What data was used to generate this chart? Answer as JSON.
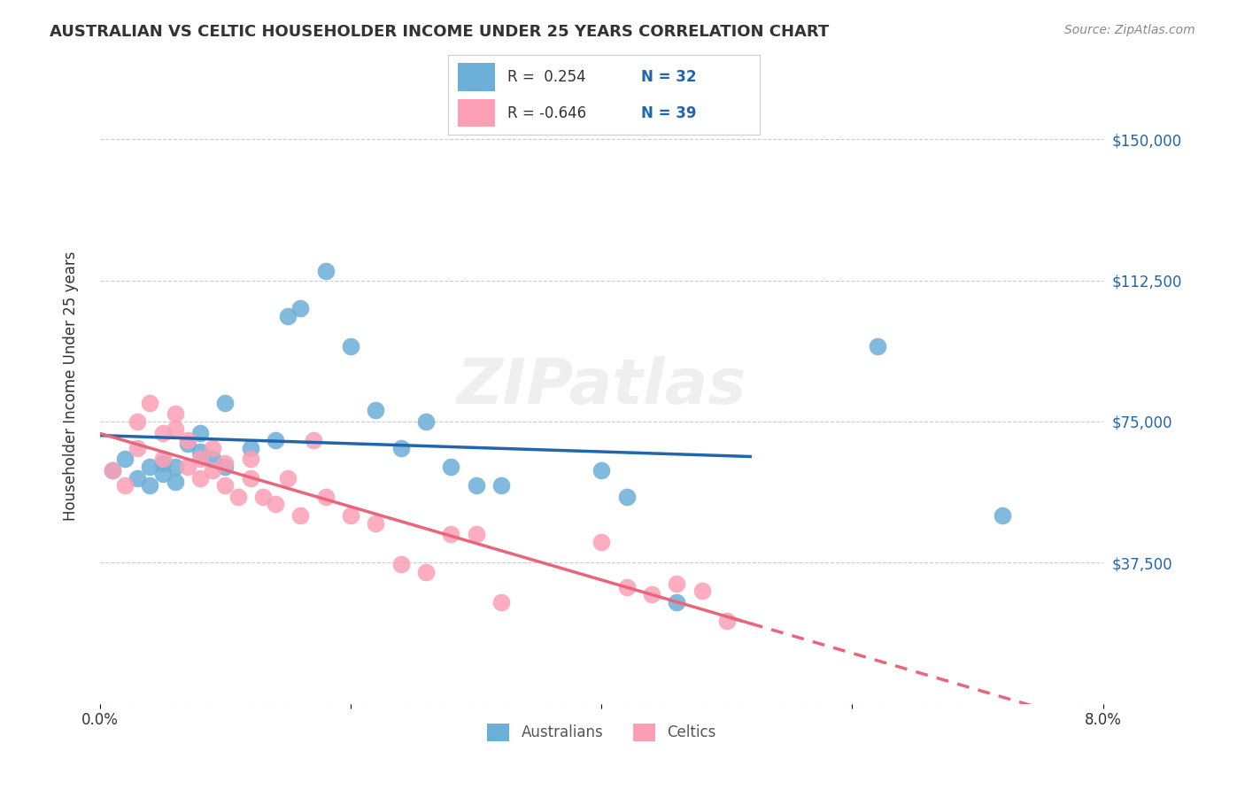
{
  "title": "AUSTRALIAN VS CELTIC HOUSEHOLDER INCOME UNDER 25 YEARS CORRELATION CHART",
  "source": "Source: ZipAtlas.com",
  "xlabel": "",
  "ylabel": "Householder Income Under 25 years",
  "watermark": "ZIPatlas",
  "xlim": [
    0.0,
    0.08
  ],
  "ylim": [
    0,
    168750
  ],
  "yticks": [
    0,
    37500,
    75000,
    112500,
    150000
  ],
  "ytick_labels": [
    "",
    "$37,500",
    "$75,000",
    "$112,500",
    "$150,000"
  ],
  "xticks": [
    0.0,
    0.02,
    0.04,
    0.06,
    0.08
  ],
  "xtick_labels": [
    "0.0%",
    "",
    "",
    "",
    "8.0%"
  ],
  "legend_R_aus": "0.254",
  "legend_N_aus": "32",
  "legend_R_cel": "-0.646",
  "legend_N_cel": "39",
  "legend_label_aus": "Australians",
  "legend_label_cel": "Celtics",
  "aus_color": "#6baed6",
  "cel_color": "#fc9fb5",
  "aus_line_color": "#2166ac",
  "cel_line_color": "#e8657a",
  "background_color": "#ffffff",
  "grid_color": "#cccccc",
  "aus_x": [
    0.001,
    0.002,
    0.003,
    0.004,
    0.004,
    0.005,
    0.005,
    0.006,
    0.006,
    0.007,
    0.008,
    0.008,
    0.009,
    0.01,
    0.01,
    0.012,
    0.014,
    0.015,
    0.016,
    0.018,
    0.02,
    0.022,
    0.024,
    0.026,
    0.028,
    0.03,
    0.032,
    0.04,
    0.042,
    0.046,
    0.062,
    0.072
  ],
  "aus_y": [
    62000,
    65000,
    60000,
    58000,
    63000,
    61000,
    64000,
    59000,
    63000,
    69000,
    67000,
    72000,
    65000,
    80000,
    63000,
    68000,
    70000,
    103000,
    105000,
    115000,
    95000,
    78000,
    68000,
    75000,
    63000,
    58000,
    58000,
    62000,
    55000,
    27000,
    95000,
    50000
  ],
  "cel_x": [
    0.001,
    0.002,
    0.003,
    0.003,
    0.004,
    0.005,
    0.005,
    0.006,
    0.006,
    0.007,
    0.007,
    0.008,
    0.008,
    0.009,
    0.009,
    0.01,
    0.01,
    0.011,
    0.012,
    0.012,
    0.013,
    0.014,
    0.015,
    0.016,
    0.017,
    0.018,
    0.02,
    0.022,
    0.024,
    0.026,
    0.028,
    0.03,
    0.032,
    0.04,
    0.042,
    0.044,
    0.046,
    0.048,
    0.05
  ],
  "cel_y": [
    62000,
    58000,
    75000,
    68000,
    80000,
    72000,
    65000,
    77000,
    73000,
    70000,
    63000,
    65000,
    60000,
    68000,
    62000,
    64000,
    58000,
    55000,
    65000,
    60000,
    55000,
    53000,
    60000,
    50000,
    70000,
    55000,
    50000,
    48000,
    37000,
    35000,
    45000,
    45000,
    27000,
    43000,
    31000,
    29000,
    32000,
    30000,
    22000
  ]
}
